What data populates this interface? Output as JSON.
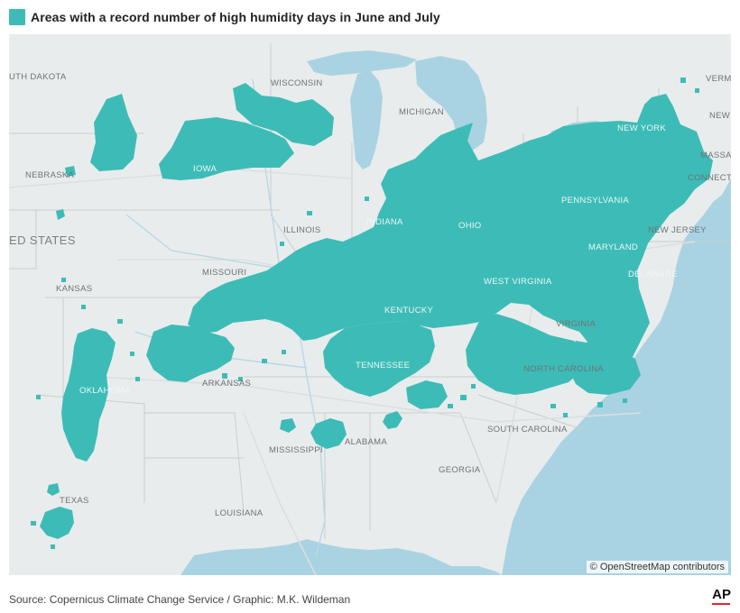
{
  "legend": {
    "label": "Areas with a record number of high humidity days in June and July",
    "color": "#3dbcb7"
  },
  "map": {
    "state_labels": {
      "south_dakota": "UTH DAKOTA",
      "wisconsin": "WISCONSIN",
      "michigan": "MICHIGAN",
      "vermont": "VERMO",
      "new_hampshire": "NEW",
      "massachusetts": "MASSAC",
      "connecticut": "CONNECTI",
      "nebraska": "NEBRASKA",
      "iowa": "IOWA",
      "new_york": "NEW YORK",
      "pennsylvania": "PENNSYLVANIA",
      "illinois": "ILLINOIS",
      "indiana": "INDIANA",
      "ohio": "OHIO",
      "new_jersey": "NEW JERSEY",
      "maryland": "MARYLAND",
      "delaware": "DELAWARE",
      "missouri": "MISSOURI",
      "kansas": "KANSAS",
      "west_virginia": "WEST VIRGINIA",
      "kentucky": "KENTUCKY",
      "virginia": "VIRGINIA",
      "oklahoma": "OKLAHOMA",
      "tennessee": "TENNESSEE",
      "arkansas": "ARKANSAS",
      "north_carolina": "NORTH CAROLINA",
      "south_carolina": "SOUTH CAROLINA",
      "mississippi": "MISSISSIPPI",
      "alabama": "ALABAMA",
      "georgia": "GEORGIA",
      "texas": "TEXAS",
      "louisiana": "LOUISIANA"
    },
    "country_label": "ED STATES",
    "attribution": "© OpenStreetMap contributors",
    "colors": {
      "land": "#e9ecec",
      "water": "#a9d3e2",
      "highlight": "#3dbcb7"
    }
  },
  "footer": {
    "source": "Source: Copernicus Climate Change Service / Graphic: M.K. Wildeman",
    "logo": "AP"
  }
}
